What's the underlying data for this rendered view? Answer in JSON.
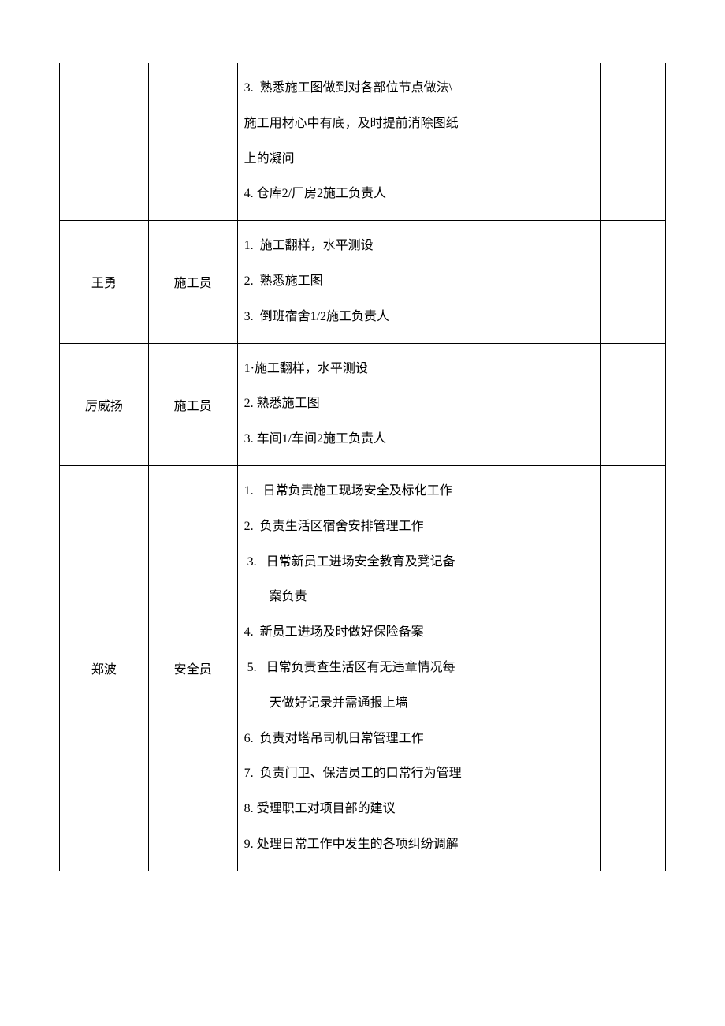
{
  "table": {
    "rows": [
      {
        "name": "",
        "role": "",
        "topOpen": true,
        "duties": [
          "3.  熟悉施工图做到对各部位节点做法\\",
          "施工用材心中有底，及时提前消除图纸",
          "上的凝问",
          "4. 仓库2/厂房2施工负责人"
        ]
      },
      {
        "name": "王勇",
        "role": "施工员",
        "duties": [
          "1.  施工翻样，水平测设",
          "2.  熟悉施工图",
          "3.  倒班宿舍1/2施工负责人"
        ]
      },
      {
        "name": "厉威扬",
        "role": "施工员",
        "duties": [
          "1·施工翻样，水平测设",
          "2. 熟悉施工图",
          "3. 车间1/车间2施工负责人"
        ]
      },
      {
        "name": "郑波",
        "role": "安全员",
        "bottomOpen": true,
        "duties": [
          "1.   日常负责施工现场安全及标化工作",
          "2.  负责生活区宿舍安排管理工作",
          " 3.   日常新员工进场安全教育及凳记备",
          "        案负责",
          "4.  新员工进场及时做好保险备案",
          " 5.   日常负责查生活区有无违章情况每",
          "        天做好记录并需通报上墙",
          "6.  负责对塔吊司机日常管理工作",
          "7.  负责门卫、保洁员工的口常行为管理",
          "8. 受理职工对项目部的建议",
          "9. 处理日常工作中发生的各项纠纷调解"
        ]
      }
    ]
  }
}
